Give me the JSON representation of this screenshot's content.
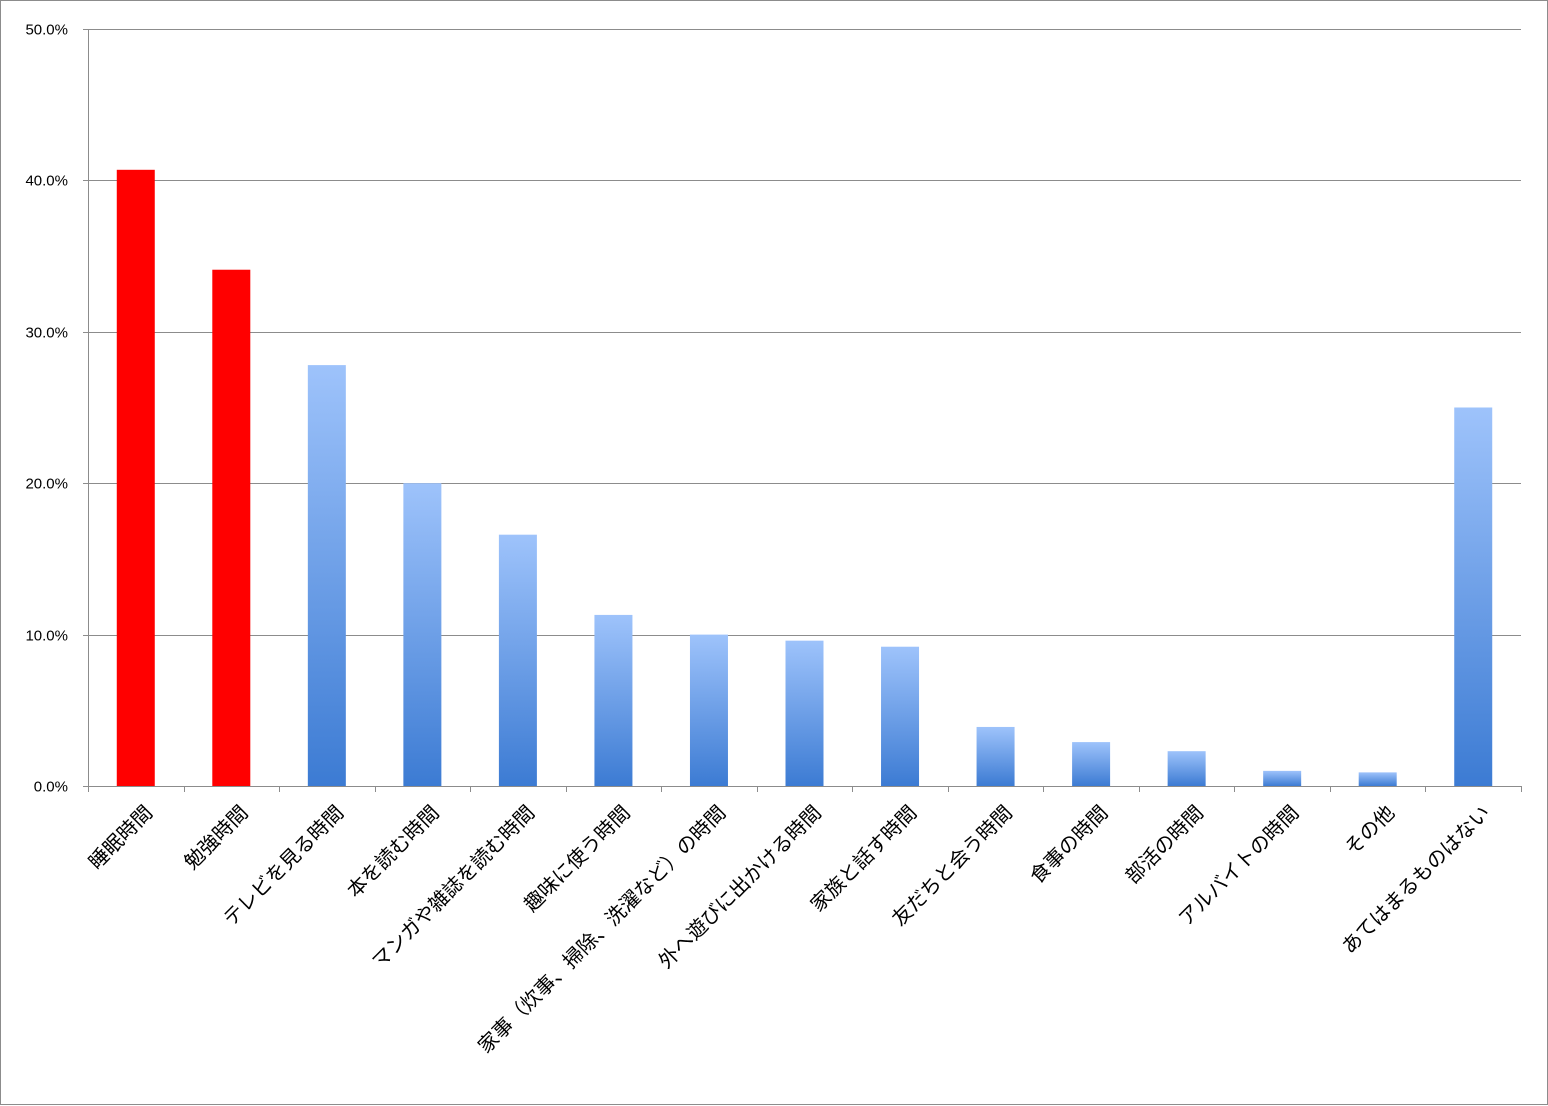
{
  "chart_data": {
    "type": "bar",
    "title": "",
    "xlabel": "",
    "ylabel": "",
    "ylim": [
      0,
      50
    ],
    "y_ticks": [
      0,
      10,
      20,
      30,
      40,
      50
    ],
    "y_tick_labels": [
      "0.0%",
      "10.0%",
      "20.0%",
      "30.0%",
      "40.0%",
      "50.0%"
    ],
    "grid": true,
    "legend": "none",
    "categories": [
      "睡眠時間",
      "勉強時間",
      "テレビを見る時間",
      "本を読む時間",
      "マンガや雑誌を読む時間",
      "趣味に使う時間",
      "家事（炊事、掃除、洗濯など）の時間",
      "外へ遊びに出かける時間",
      "家族と話す時間",
      "友だちと会う時間",
      "食事の時間",
      "部活の時間",
      "アルバイトの時間",
      "その他",
      "あてはまるものはない"
    ],
    "values": [
      40.7,
      34.1,
      27.8,
      20.0,
      16.6,
      11.3,
      10.0,
      9.6,
      9.2,
      3.9,
      2.9,
      2.3,
      1.0,
      0.9,
      25.0
    ],
    "highlight_count": 2,
    "colors": {
      "highlight": "#ff0000",
      "bar_top": "#9ec3fb",
      "bar_bottom": "#3c7bd3",
      "grid": "#8c8c8c",
      "axis": "#8c8c8c"
    }
  }
}
